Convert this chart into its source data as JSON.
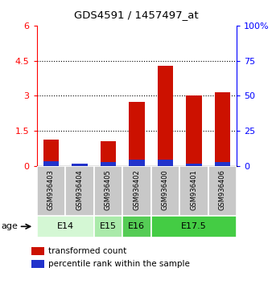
{
  "title": "GDS4591 / 1457497_at",
  "samples": [
    "GSM936403",
    "GSM936404",
    "GSM936405",
    "GSM936402",
    "GSM936400",
    "GSM936401",
    "GSM936406"
  ],
  "transformed_count": [
    1.15,
    0.0,
    1.05,
    2.75,
    4.3,
    3.0,
    3.15
  ],
  "percentile_rank_scaled": [
    0.22,
    0.12,
    0.18,
    0.27,
    0.28,
    0.12,
    0.16
  ],
  "left_ylim": [
    0,
    6
  ],
  "left_yticks": [
    0,
    1.5,
    3.0,
    4.5,
    6
  ],
  "left_yticklabels": [
    "0",
    "1.5",
    "3",
    "4.5",
    "6"
  ],
  "right_ylim": [
    0,
    100
  ],
  "right_yticks": [
    0,
    25,
    50,
    75,
    100
  ],
  "right_yticklabels": [
    "0",
    "25",
    "50",
    "75",
    "100%"
  ],
  "age_groups": [
    {
      "label": "E14",
      "span": [
        0,
        1
      ],
      "color": "#d4f7d4"
    },
    {
      "label": "E15",
      "span": [
        2,
        2
      ],
      "color": "#aaeaaa"
    },
    {
      "label": "E16",
      "span": [
        3,
        3
      ],
      "color": "#55cc55"
    },
    {
      "label": "E17.5",
      "span": [
        4,
        6
      ],
      "color": "#44cc44"
    }
  ],
  "bar_width": 0.55,
  "red_color": "#cc1100",
  "blue_color": "#2233cc",
  "bg_color": "#c8c8c8",
  "legend_red": "transformed count",
  "legend_blue": "percentile rank within the sample"
}
